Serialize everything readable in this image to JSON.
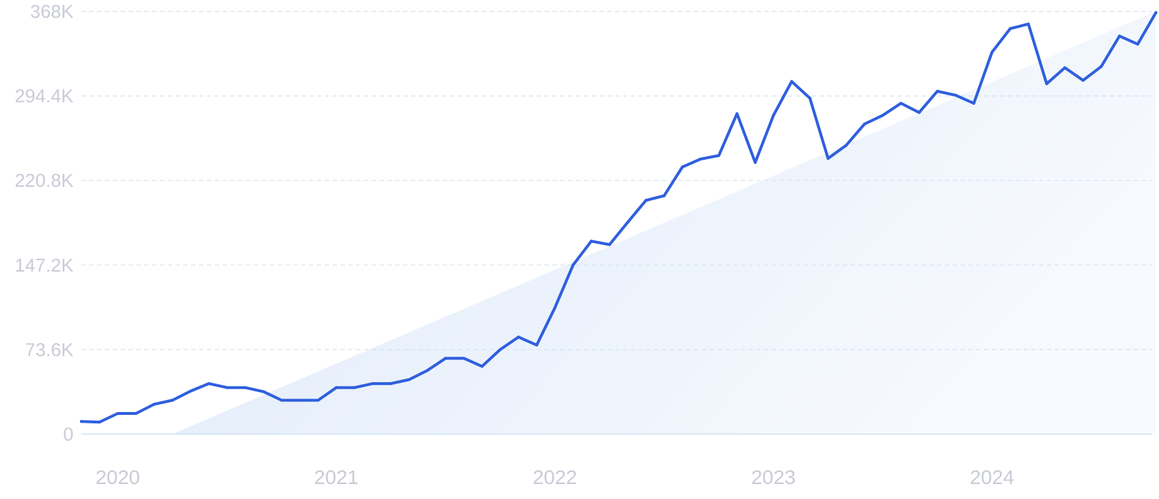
{
  "chart_data": {
    "type": "line",
    "title": "",
    "xlabel": "",
    "ylabel": "",
    "ylim": [
      0,
      368000
    ],
    "y_ticks": [
      {
        "value": 0,
        "label": "0"
      },
      {
        "value": 73600,
        "label": "73.6K"
      },
      {
        "value": 147200,
        "label": "147.2K"
      },
      {
        "value": 220800,
        "label": "220.8K"
      },
      {
        "value": 294400,
        "label": "294.4K"
      },
      {
        "value": 368000,
        "label": "368K"
      }
    ],
    "x_ticks": [
      {
        "value": "2020-01",
        "label": "2020"
      },
      {
        "value": "2021-01",
        "label": "2021"
      },
      {
        "value": "2022-01",
        "label": "2022"
      },
      {
        "value": "2023-01",
        "label": "2023"
      },
      {
        "value": "2024-01",
        "label": "2024"
      }
    ],
    "grid": true,
    "legend": "none",
    "trend_fill": true,
    "colors": {
      "line": "#2f5fde",
      "grid": "#d5e3ee",
      "baseline": "#cfe3f0",
      "tick": "#c9ccd6",
      "trend_fill": "#e3eefb"
    },
    "series": [
      {
        "x": [
          "2019-11",
          "2019-12",
          "2020-01",
          "2020-02",
          "2020-03",
          "2020-04",
          "2020-05",
          "2020-06",
          "2020-07",
          "2020-08",
          "2020-09",
          "2020-10",
          "2020-11",
          "2020-12",
          "2021-01",
          "2021-02",
          "2021-03",
          "2021-04",
          "2021-05",
          "2021-06",
          "2021-07",
          "2021-08",
          "2021-09",
          "2021-10",
          "2021-11",
          "2021-12",
          "2022-01",
          "2022-02",
          "2022-03",
          "2022-04",
          "2022-05",
          "2022-06",
          "2022-07",
          "2022-08",
          "2022-09",
          "2022-10",
          "2022-11",
          "2022-12",
          "2023-01",
          "2023-02",
          "2023-03",
          "2023-04",
          "2023-05",
          "2023-06",
          "2023-07",
          "2023-08",
          "2023-09",
          "2023-10",
          "2023-11",
          "2023-12",
          "2024-01",
          "2024-02",
          "2024-03",
          "2024-04",
          "2024-05",
          "2024-06",
          "2024-07",
          "2024-08",
          "2024-09",
          "2024-10"
        ],
        "values": [
          11000,
          10500,
          18000,
          18000,
          26000,
          29500,
          37500,
          44000,
          40500,
          40500,
          37000,
          29500,
          29500,
          29500,
          40500,
          40500,
          44000,
          44000,
          47500,
          55500,
          66000,
          66000,
          59000,
          73600,
          84500,
          77500,
          110000,
          147200,
          168000,
          165000,
          184500,
          203500,
          207500,
          232500,
          239500,
          242500,
          279000,
          236500,
          277500,
          307000,
          292500,
          240000,
          251500,
          270000,
          277500,
          288000,
          280000,
          298500,
          295000,
          288000,
          332500,
          353000,
          357000,
          305000,
          319000,
          308000,
          320000,
          346500,
          339500,
          367000
        ]
      }
    ],
    "trend": {
      "start": {
        "x": "2020-04",
        "y": 0
      },
      "end": {
        "x": "2024-10",
        "y": 368000
      }
    }
  }
}
